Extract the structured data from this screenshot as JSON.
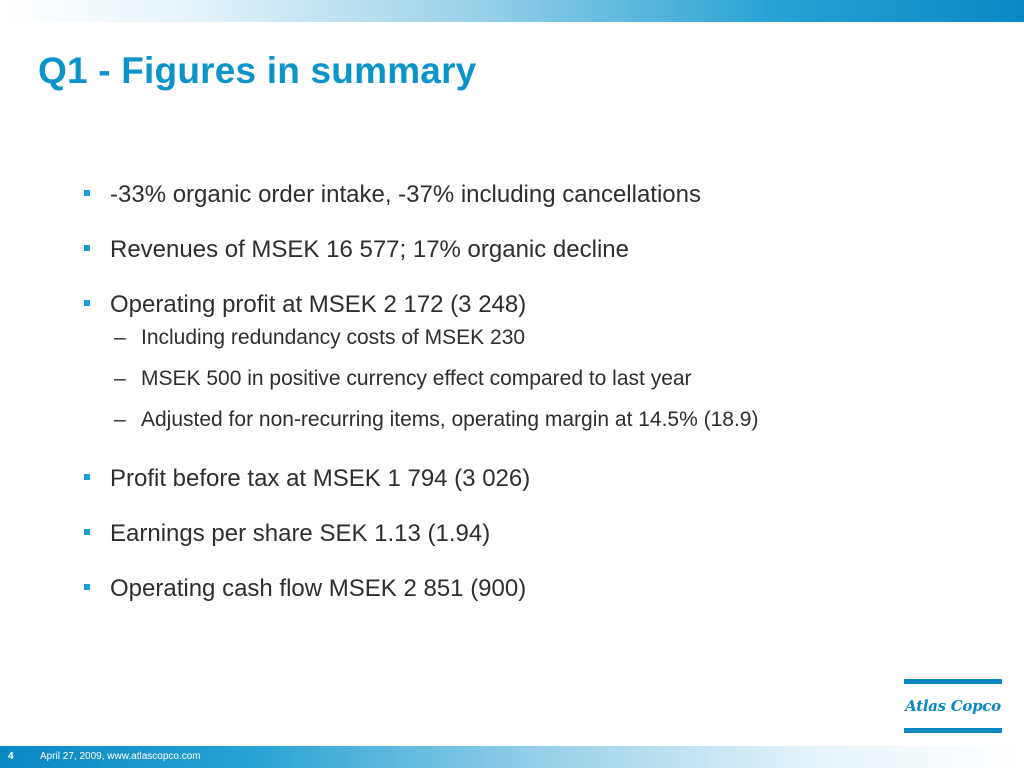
{
  "slide": {
    "title": "Q1 - Figures in summary",
    "bullets": [
      {
        "text": "-33% organic order intake, -37% including cancellations"
      },
      {
        "text": "Revenues of MSEK 16 577; 17% organic decline"
      },
      {
        "text": "Operating profit at MSEK 2 172 (3 248)",
        "sub": [
          "Including redundancy costs of MSEK 230",
          "MSEK 500 in positive currency effect compared to last year",
          "Adjusted for non-recurring items, operating margin at 14.5% (18.9)"
        ]
      },
      {
        "text": "Profit before tax at MSEK 1 794 (3 026)"
      },
      {
        "text": "Earnings per share SEK 1.13 (1.94)"
      },
      {
        "text": "Operating cash flow MSEK 2 851 (900)"
      }
    ],
    "sub_dash": "–"
  },
  "logo": {
    "text": "Atlas Copco"
  },
  "footer": {
    "page_number": "4",
    "text": "April 27, 2009, www.atlascopco.com"
  },
  "colors": {
    "accent": "#0a94c9",
    "bar": "#0a88c4",
    "text": "#2e2e2e"
  }
}
